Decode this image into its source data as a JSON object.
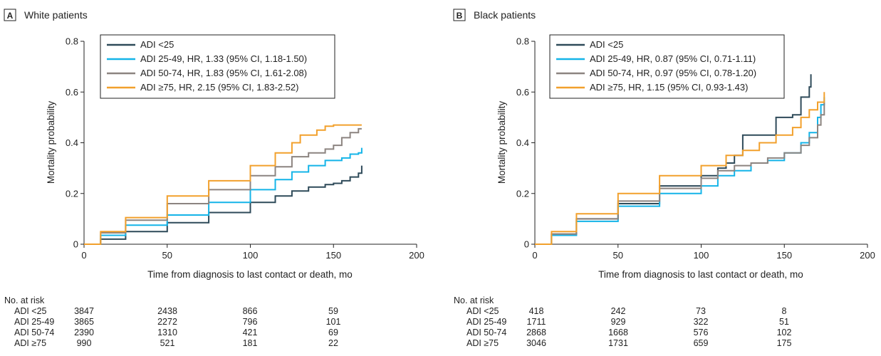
{
  "chart_data": [
    {
      "type": "line",
      "panel_letter": "A",
      "title": "White patients",
      "xlabel": "Time from diagnosis to last contact or death, mo",
      "ylabel": "Mortality probability",
      "xlim": [
        0,
        200
      ],
      "ylim": [
        0,
        0.8
      ],
      "xticks": [
        "0",
        "50",
        "100",
        "150",
        "200"
      ],
      "yticks": [
        "0",
        "0.2",
        "0.4",
        "0.6",
        "0.8"
      ],
      "grid": false,
      "legend_position": "top-left",
      "series": [
        {
          "name": "ADI <25",
          "color": "#2e4a59",
          "points": [
            [
              0,
              0
            ],
            [
              10,
              0.02
            ],
            [
              25,
              0.05
            ],
            [
              50,
              0.085
            ],
            [
              75,
              0.125
            ],
            [
              100,
              0.165
            ],
            [
              115,
              0.19
            ],
            [
              125,
              0.21
            ],
            [
              135,
              0.225
            ],
            [
              145,
              0.235
            ],
            [
              150,
              0.24
            ],
            [
              155,
              0.25
            ],
            [
              160,
              0.265
            ],
            [
              165,
              0.28
            ],
            [
              167,
              0.31
            ]
          ]
        },
        {
          "name": "ADI 25-49, HR, 1.33 (95% CI, 1.18-1.50)",
          "color": "#14b4e8",
          "points": [
            [
              0,
              0
            ],
            [
              10,
              0.035
            ],
            [
              25,
              0.075
            ],
            [
              50,
              0.115
            ],
            [
              75,
              0.165
            ],
            [
              100,
              0.215
            ],
            [
              115,
              0.255
            ],
            [
              125,
              0.285
            ],
            [
              135,
              0.31
            ],
            [
              145,
              0.33
            ],
            [
              155,
              0.34
            ],
            [
              160,
              0.355
            ],
            [
              165,
              0.36
            ],
            [
              167,
              0.38
            ]
          ]
        },
        {
          "name": "ADI 50-74, HR, 1.83 (95% CI, 1.61-2.08)",
          "color": "#8c8480",
          "points": [
            [
              0,
              0
            ],
            [
              10,
              0.045
            ],
            [
              25,
              0.095
            ],
            [
              50,
              0.16
            ],
            [
              75,
              0.215
            ],
            [
              100,
              0.27
            ],
            [
              115,
              0.305
            ],
            [
              125,
              0.345
            ],
            [
              135,
              0.36
            ],
            [
              145,
              0.375
            ],
            [
              150,
              0.39
            ],
            [
              155,
              0.42
            ],
            [
              160,
              0.44
            ],
            [
              165,
              0.455
            ],
            [
              167,
              0.455
            ]
          ]
        },
        {
          "name": "ADI ≥75, HR, 2.15 (95% CI, 1.83-2.52)",
          "color": "#f2a02c",
          "points": [
            [
              0,
              0
            ],
            [
              10,
              0.05
            ],
            [
              25,
              0.105
            ],
            [
              50,
              0.19
            ],
            [
              75,
              0.25
            ],
            [
              100,
              0.31
            ],
            [
              115,
              0.36
            ],
            [
              125,
              0.4
            ],
            [
              130,
              0.43
            ],
            [
              140,
              0.45
            ],
            [
              145,
              0.465
            ],
            [
              150,
              0.47
            ],
            [
              167,
              0.47
            ]
          ]
        }
      ],
      "risk_table": {
        "header": "No. at risk",
        "rows": [
          {
            "label": "ADI <25",
            "values": [
              "3847",
              "2438",
              "866",
              "59"
            ]
          },
          {
            "label": "ADI 25-49",
            "values": [
              "3865",
              "2272",
              "796",
              "101"
            ]
          },
          {
            "label": "ADI 50-74",
            "values": [
              "2390",
              "1310",
              "421",
              "69"
            ]
          },
          {
            "label": "ADI ≥75",
            "values": [
              "990",
              "521",
              "181",
              "22"
            ]
          }
        ]
      }
    },
    {
      "type": "line",
      "panel_letter": "B",
      "title": "Black patients",
      "xlabel": "Time from diagnosis to last contact or death, mo",
      "ylabel": "Mortality probability",
      "xlim": [
        0,
        200
      ],
      "ylim": [
        0,
        0.8
      ],
      "xticks": [
        "0",
        "50",
        "100",
        "150",
        "200"
      ],
      "yticks": [
        "0",
        "0.2",
        "0.4",
        "0.6",
        "0.8"
      ],
      "grid": false,
      "legend_position": "top-left",
      "series": [
        {
          "name": "ADI <25",
          "color": "#2e4a59",
          "points": [
            [
              0,
              0
            ],
            [
              10,
              0.04
            ],
            [
              25,
              0.1
            ],
            [
              50,
              0.16
            ],
            [
              75,
              0.23
            ],
            [
              100,
              0.27
            ],
            [
              110,
              0.3
            ],
            [
              115,
              0.32
            ],
            [
              120,
              0.35
            ],
            [
              125,
              0.43
            ],
            [
              135,
              0.43
            ],
            [
              140,
              0.43
            ],
            [
              145,
              0.5
            ],
            [
              155,
              0.51
            ],
            [
              160,
              0.58
            ],
            [
              165,
              0.62
            ],
            [
              166,
              0.67
            ]
          ]
        },
        {
          "name": "ADI 25-49, HR, 0.87 (95% CI, 0.71-1.11)",
          "color": "#14b4e8",
          "points": [
            [
              0,
              0
            ],
            [
              10,
              0.035
            ],
            [
              25,
              0.09
            ],
            [
              50,
              0.15
            ],
            [
              75,
              0.2
            ],
            [
              100,
              0.23
            ],
            [
              110,
              0.27
            ],
            [
              120,
              0.29
            ],
            [
              130,
              0.32
            ],
            [
              140,
              0.33
            ],
            [
              150,
              0.36
            ],
            [
              160,
              0.4
            ],
            [
              165,
              0.44
            ],
            [
              170,
              0.5
            ],
            [
              172,
              0.55
            ],
            [
              174,
              0.58
            ]
          ]
        },
        {
          "name": "ADI 50-74, HR, 0.97 (95% CI, 0.78-1.20)",
          "color": "#8c8480",
          "points": [
            [
              0,
              0
            ],
            [
              10,
              0.04
            ],
            [
              25,
              0.1
            ],
            [
              50,
              0.17
            ],
            [
              75,
              0.22
            ],
            [
              100,
              0.26
            ],
            [
              110,
              0.29
            ],
            [
              120,
              0.31
            ],
            [
              130,
              0.32
            ],
            [
              140,
              0.34
            ],
            [
              150,
              0.36
            ],
            [
              160,
              0.39
            ],
            [
              165,
              0.42
            ],
            [
              170,
              0.47
            ],
            [
              172,
              0.51
            ],
            [
              174,
              0.56
            ]
          ]
        },
        {
          "name": "ADI ≥75, HR, 1.15 (95% CI, 0.93-1.43)",
          "color": "#f2a02c",
          "points": [
            [
              0,
              0
            ],
            [
              10,
              0.05
            ],
            [
              25,
              0.12
            ],
            [
              50,
              0.2
            ],
            [
              75,
              0.27
            ],
            [
              100,
              0.31
            ],
            [
              115,
              0.35
            ],
            [
              125,
              0.37
            ],
            [
              135,
              0.4
            ],
            [
              145,
              0.43
            ],
            [
              155,
              0.46
            ],
            [
              160,
              0.5
            ],
            [
              165,
              0.53
            ],
            [
              170,
              0.56
            ],
            [
              174,
              0.6
            ]
          ]
        }
      ],
      "risk_table": {
        "header": "No. at risk",
        "rows": [
          {
            "label": "ADI <25",
            "values": [
              "418",
              "242",
              "73",
              "8"
            ]
          },
          {
            "label": "ADI 25-49",
            "values": [
              "1711",
              "929",
              "322",
              "51"
            ]
          },
          {
            "label": "ADI 50-74",
            "values": [
              "2868",
              "1668",
              "576",
              "102"
            ]
          },
          {
            "label": "ADI ≥75",
            "values": [
              "3046",
              "1731",
              "659",
              "175"
            ]
          }
        ]
      }
    }
  ]
}
